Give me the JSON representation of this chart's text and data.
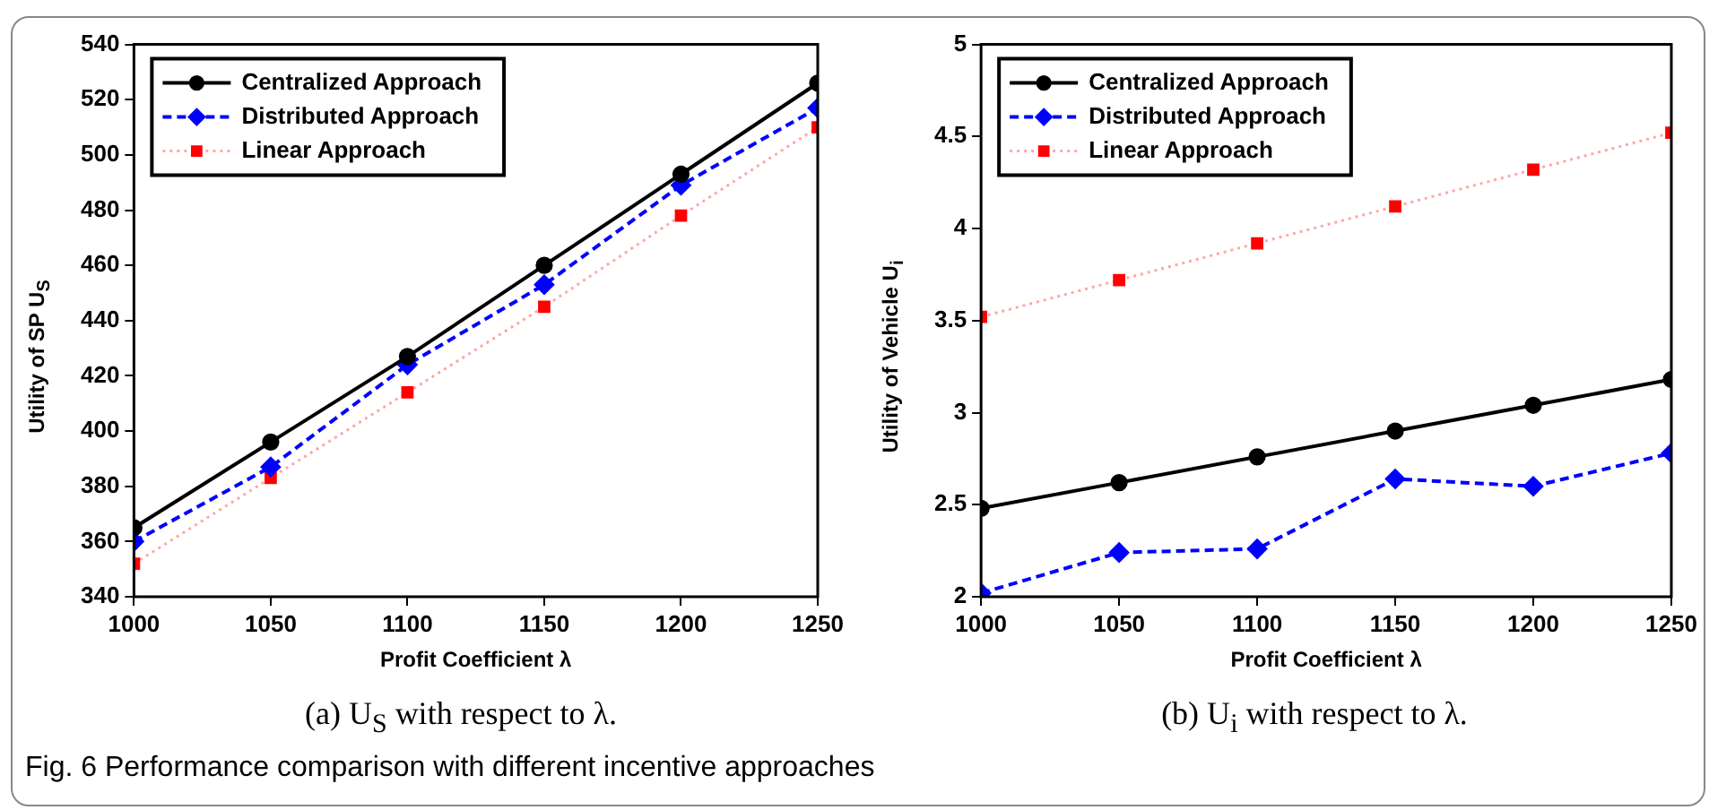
{
  "chart_data": [
    {
      "type": "line",
      "xlabel": "Profit Coefficient λ",
      "ylabel": "Utility of SP U$_{S}$",
      "x": [
        1000,
        1050,
        1100,
        1150,
        1200,
        1250
      ],
      "xlim": [
        1000,
        1250
      ],
      "xticks": [
        1000,
        1050,
        1100,
        1150,
        1200,
        1250
      ],
      "ylim": [
        340,
        540
      ],
      "yticks": [
        340,
        360,
        380,
        400,
        420,
        440,
        460,
        480,
        500,
        520,
        540
      ],
      "grid": false,
      "legend": "top left",
      "series": [
        {
          "name": "Centralized Approach",
          "color": "#000000",
          "marker": "circle",
          "line_style": "solid",
          "values": [
            365,
            396,
            427,
            460,
            493,
            526
          ]
        },
        {
          "name": "Distributed Approach",
          "color": "#0000ff",
          "marker": "diamond",
          "line_style": "dashed",
          "values": [
            360,
            387,
            424,
            453,
            489,
            517
          ]
        },
        {
          "name": "Linear Approach",
          "color": "#ff0000",
          "marker": "square",
          "line_style": "dotted",
          "values": [
            352,
            383,
            414,
            445,
            478,
            510
          ]
        }
      ],
      "annotations": [
        "(a) U$_{S}$ with respect to λ.",
        "Fig. 6  Performance comparison with different incentive approaches"
      ]
    },
    {
      "type": "line",
      "xlabel": "Profit Coefficient λ",
      "ylabel": "Utility of Vehicle U$_{i}$",
      "x": [
        1000,
        1050,
        1100,
        1150,
        1200,
        1250
      ],
      "xlim": [
        1000,
        1250
      ],
      "xticks": [
        1000,
        1050,
        1100,
        1150,
        1200,
        1250
      ],
      "ylim": [
        2,
        5
      ],
      "yticks": [
        2,
        2.5,
        3,
        3.5,
        4,
        4.5,
        5
      ],
      "grid": false,
      "legend": "top left",
      "series": [
        {
          "name": "Centralized Approach",
          "color": "#000000",
          "marker": "circle",
          "line_style": "solid",
          "values": [
            2.48,
            2.62,
            2.76,
            2.9,
            3.04,
            3.18
          ]
        },
        {
          "name": "Distributed Approach",
          "color": "#0000ff",
          "marker": "diamond",
          "line_style": "dashed",
          "values": [
            2.02,
            2.24,
            2.26,
            2.64,
            2.6,
            2.78
          ]
        },
        {
          "name": "Linear Approach",
          "color": "#ff0000",
          "marker": "square",
          "line_style": "dotted",
          "values": [
            3.52,
            3.72,
            3.92,
            4.12,
            4.32,
            4.52
          ]
        }
      ],
      "annotations": [
        "(b) U$_{i}$ with respect to λ."
      ]
    }
  ]
}
